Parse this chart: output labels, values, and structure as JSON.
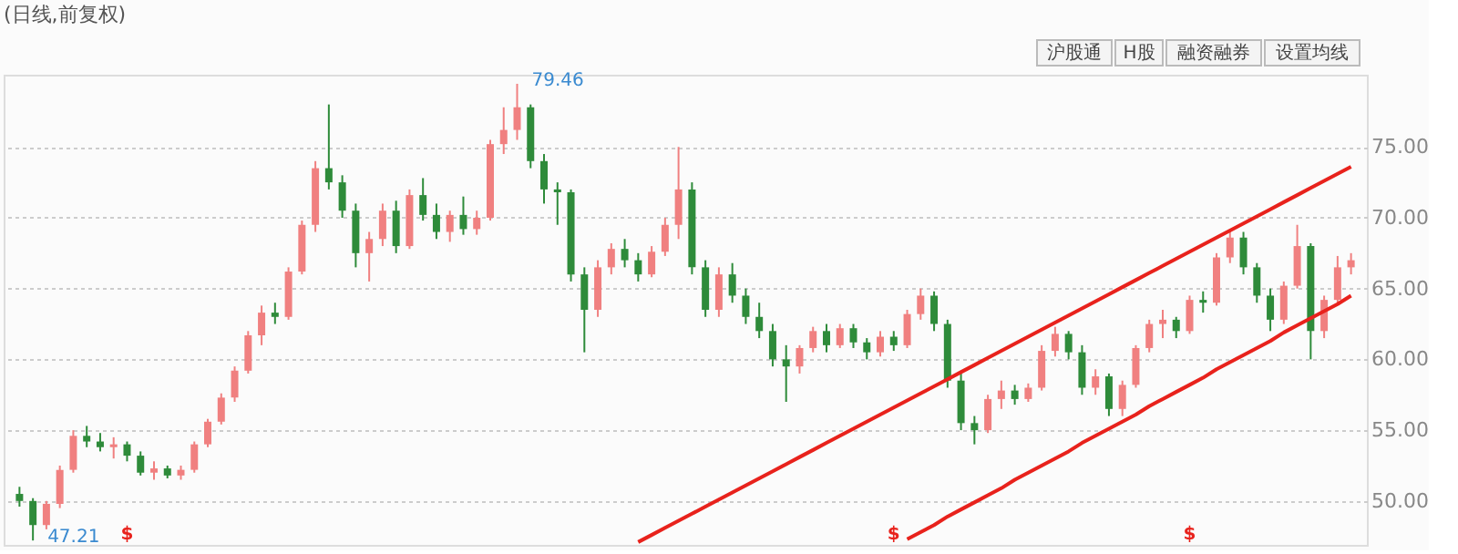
{
  "chart_data": {
    "type": "candlestick",
    "title": "(日线,前复权)",
    "categories": [
      null,
      null,
      null,
      null,
      null,
      null,
      null,
      null,
      null,
      null,
      null,
      null,
      null,
      null,
      null,
      null,
      null,
      null,
      null,
      null,
      null,
      null,
      null,
      null,
      null,
      null,
      null,
      null,
      null,
      null,
      null,
      null,
      null,
      null,
      null,
      null,
      null,
      null,
      null,
      null,
      null,
      null,
      null,
      null,
      null,
      null,
      null,
      null,
      null,
      null,
      null,
      null,
      null,
      null,
      null,
      null,
      null,
      null,
      null,
      null,
      null,
      null,
      null,
      null,
      null,
      null,
      null,
      null,
      null,
      null,
      null,
      null,
      null,
      null,
      null,
      null,
      null,
      null,
      null,
      null,
      null,
      null,
      null,
      null,
      null,
      null,
      null,
      null,
      null,
      null,
      null,
      null,
      null,
      null,
      null,
      null,
      null,
      null,
      null,
      null
    ],
    "ohlc": [
      [
        50.5,
        51,
        49.6,
        50
      ],
      [
        50,
        50.2,
        47.21,
        48.3
      ],
      [
        48.3,
        50,
        48,
        49.8
      ],
      [
        49.8,
        52.5,
        49.5,
        52.2
      ],
      [
        52.2,
        55,
        52,
        54.6
      ],
      [
        54.6,
        55.3,
        53.8,
        54.2
      ],
      [
        54.2,
        54.8,
        53.5,
        53.8
      ],
      [
        53.8,
        54.5,
        53,
        54
      ],
      [
        54,
        54.2,
        52.8,
        53.2
      ],
      [
        53.2,
        53.5,
        51.8,
        52
      ],
      [
        52,
        52.8,
        51.5,
        52.3
      ],
      [
        52.3,
        52.5,
        51.6,
        51.8
      ],
      [
        51.8,
        52.5,
        51.5,
        52.2
      ],
      [
        52.2,
        54.2,
        52,
        54
      ],
      [
        54,
        55.8,
        53.8,
        55.6
      ],
      [
        55.6,
        57.6,
        55.4,
        57.3
      ],
      [
        57.3,
        59.5,
        57,
        59.2
      ],
      [
        59.2,
        62,
        59,
        61.7
      ],
      [
        61.7,
        63.8,
        61,
        63.3
      ],
      [
        63.3,
        64,
        62.5,
        63
      ],
      [
        63,
        66.5,
        62.8,
        66.2
      ],
      [
        66.2,
        69.8,
        66,
        69.5
      ],
      [
        69.5,
        74,
        69,
        73.5
      ],
      [
        73.5,
        78,
        72,
        72.5
      ],
      [
        72.5,
        73,
        70,
        70.5
      ],
      [
        70.5,
        71,
        66.5,
        67.5
      ],
      [
        67.5,
        69,
        65.5,
        68.5
      ],
      [
        68.5,
        71,
        68,
        70.5
      ],
      [
        70.5,
        71.2,
        67.5,
        68
      ],
      [
        68,
        72,
        67.8,
        71.6
      ],
      [
        71.6,
        72.8,
        69.8,
        70.2
      ],
      [
        70.2,
        71,
        68.5,
        69
      ],
      [
        69,
        70.5,
        68.3,
        70.2
      ],
      [
        70.2,
        71.5,
        68.8,
        69.2
      ],
      [
        69.2,
        70.5,
        68.8,
        70
      ],
      [
        70,
        75.5,
        69.8,
        75.2
      ],
      [
        75.2,
        77.8,
        74.5,
        76.2
      ],
      [
        76.2,
        79.46,
        75.5,
        77.8
      ],
      [
        77.8,
        78,
        73.5,
        74
      ],
      [
        74,
        74.5,
        71,
        72
      ],
      [
        72,
        72.5,
        69.5,
        71.8
      ],
      [
        71.8,
        72,
        65.5,
        66
      ],
      [
        66,
        66.5,
        60.5,
        63.5
      ],
      [
        63.5,
        67,
        63,
        66.5
      ],
      [
        66.5,
        68.2,
        66,
        67.8
      ],
      [
        67.8,
        68.5,
        66.5,
        67
      ],
      [
        67,
        67.5,
        65.5,
        66
      ],
      [
        66,
        68,
        65.8,
        67.6
      ],
      [
        67.6,
        70,
        67.3,
        69.5
      ],
      [
        69.5,
        75,
        68.5,
        72
      ],
      [
        72,
        72.5,
        66,
        66.5
      ],
      [
        66.5,
        67,
        63,
        63.5
      ],
      [
        63.5,
        66.5,
        63,
        66
      ],
      [
        66,
        66.8,
        64,
        64.5
      ],
      [
        64.5,
        65,
        62.5,
        63
      ],
      [
        63,
        64,
        61.5,
        62
      ],
      [
        62,
        62.5,
        59.5,
        60
      ],
      [
        60,
        61,
        57,
        59.5
      ],
      [
        59.5,
        61,
        59,
        60.8
      ],
      [
        60.8,
        62.3,
        60.5,
        62
      ],
      [
        62,
        62.5,
        60.5,
        61
      ],
      [
        61,
        62.5,
        60.8,
        62.2
      ],
      [
        62.2,
        62.5,
        60.8,
        61.2
      ],
      [
        61.2,
        61.5,
        60,
        60.5
      ],
      [
        60.5,
        62,
        60.2,
        61.6
      ],
      [
        61.6,
        62,
        60.6,
        61
      ],
      [
        61,
        63.5,
        60.8,
        63.2
      ],
      [
        63.2,
        65,
        62.8,
        64.5
      ],
      [
        64.5,
        64.8,
        62,
        62.5
      ],
      [
        62.5,
        62.8,
        58,
        58.5
      ],
      [
        58.5,
        59,
        55,
        55.5
      ],
      [
        55.5,
        56,
        54,
        55
      ],
      [
        55,
        57.5,
        54.8,
        57.2
      ],
      [
        57.2,
        58.5,
        56.5,
        57.8
      ],
      [
        57.8,
        58.2,
        56.8,
        57.2
      ],
      [
        57.2,
        58.3,
        57,
        58
      ],
      [
        58,
        61,
        57.8,
        60.6
      ],
      [
        60.6,
        62.3,
        60.2,
        61.8
      ],
      [
        61.8,
        62,
        60,
        60.5
      ],
      [
        60.5,
        61,
        57.5,
        58
      ],
      [
        58,
        59.3,
        57.5,
        58.8
      ],
      [
        58.8,
        59,
        56,
        56.5
      ],
      [
        56.5,
        58.5,
        56,
        58.2
      ],
      [
        58.2,
        61,
        58,
        60.8
      ],
      [
        60.8,
        62.8,
        60.5,
        62.5
      ],
      [
        62.5,
        63.5,
        61.5,
        62.8
      ],
      [
        62.8,
        63,
        61.5,
        62
      ],
      [
        62,
        64.5,
        61.8,
        64.2
      ],
      [
        64.2,
        64.8,
        63.3,
        64
      ],
      [
        64,
        67.5,
        63.8,
        67.2
      ],
      [
        67.2,
        69.2,
        66.8,
        68.6
      ],
      [
        68.6,
        69,
        66,
        66.5
      ],
      [
        66.5,
        66.8,
        64,
        64.5
      ],
      [
        64.5,
        65,
        62,
        62.8
      ],
      [
        62.8,
        65.5,
        62.5,
        65.2
      ],
      [
        65.2,
        69.5,
        65,
        68
      ],
      [
        68,
        68.2,
        60,
        62
      ],
      [
        62,
        64.5,
        61.5,
        64.2
      ],
      [
        64.2,
        67.3,
        64,
        66.5
      ],
      [
        66.5,
        67.5,
        66,
        67
      ]
    ],
    "series": [
      {
        "type": "line",
        "color": "#e8221c",
        "values": [
          null,
          null,
          null,
          null,
          null,
          null,
          null,
          null,
          null,
          null,
          null,
          null,
          null,
          null,
          null,
          null,
          null,
          null,
          null,
          null,
          null,
          null,
          null,
          null,
          null,
          null,
          null,
          null,
          null,
          null,
          null,
          null,
          null,
          null,
          null,
          null,
          null,
          null,
          null,
          null,
          null,
          null,
          null,
          null,
          null,
          null,
          47.1,
          47.6,
          48.1,
          48.6,
          49.1,
          49.6,
          50.1,
          50.6,
          51.1,
          51.6,
          52.1,
          52.6,
          53.1,
          53.6,
          54.1,
          54.6,
          55.1,
          55.6,
          56.1,
          56.6,
          57.1,
          57.6,
          58.1,
          58.6,
          59.1,
          59.6,
          60.1,
          60.6,
          61.1,
          61.6,
          62.1,
          62.6,
          63.1,
          63.6,
          64.1,
          64.6,
          65.1,
          65.6,
          66.1,
          66.6,
          67.1,
          67.6,
          68.1,
          68.6,
          69.1,
          69.6,
          70.1,
          70.6,
          71.1,
          71.6,
          72.1,
          72.6,
          73.1,
          73.6
        ]
      },
      {
        "type": "line",
        "color": "#e8221c",
        "values": [
          null,
          null,
          null,
          null,
          null,
          null,
          null,
          null,
          null,
          null,
          null,
          null,
          null,
          null,
          null,
          null,
          null,
          null,
          null,
          null,
          null,
          null,
          null,
          null,
          null,
          null,
          null,
          null,
          null,
          null,
          null,
          null,
          null,
          null,
          null,
          null,
          null,
          null,
          null,
          null,
          null,
          null,
          null,
          null,
          null,
          null,
          null,
          null,
          null,
          null,
          null,
          null,
          null,
          null,
          null,
          null,
          null,
          null,
          null,
          null,
          null,
          null,
          null,
          null,
          null,
          null,
          47.3,
          47.8,
          48.3,
          48.9,
          49.4,
          49.9,
          50.4,
          50.9,
          51.5,
          52.0,
          52.5,
          53.0,
          53.5,
          54.1,
          54.6,
          55.1,
          55.6,
          56.1,
          56.7,
          57.2,
          57.7,
          58.2,
          58.7,
          59.3,
          59.8,
          60.3,
          60.8,
          61.3,
          61.9,
          62.4,
          62.9,
          63.4,
          63.9,
          64.5
        ]
      }
    ],
    "ylim": [
      46.9,
      80.1
    ],
    "yticks": [
      {
        "value": 50,
        "label": "50.00"
      },
      {
        "value": 55,
        "label": "55.00"
      },
      {
        "value": 60,
        "label": "60.00"
      },
      {
        "value": 65,
        "label": "65.00"
      },
      {
        "value": 70,
        "label": "70.00"
      },
      {
        "value": 75,
        "label": "75.00"
      }
    ],
    "tick_labels": "y",
    "grid": "y",
    "annotations": [
      "79.46",
      "47.21",
      "$",
      "$",
      "$",
      "沪股通",
      "H股",
      "融资融券",
      "设置均线"
    ]
  }
}
